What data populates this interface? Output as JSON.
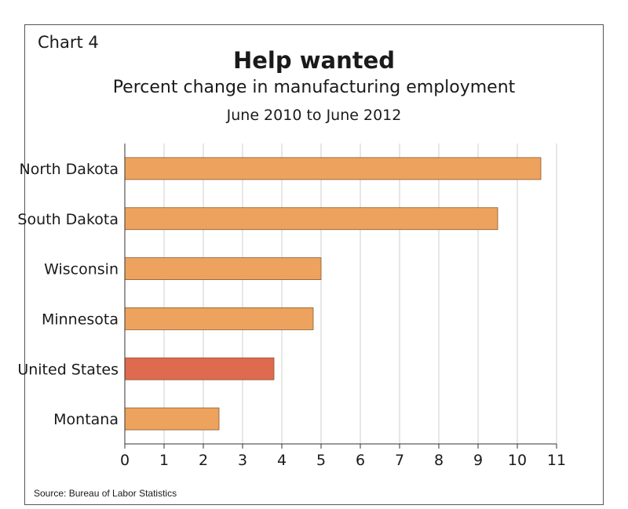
{
  "header": {
    "chart_label": "Chart 4",
    "title": "Help wanted",
    "subtitle": "Percent change in manufacturing employment",
    "period": "June 2010 to June 2012"
  },
  "footer": {
    "source": "Source: Bureau of Labor Statistics"
  },
  "colors": {
    "bar": "#EDA35D",
    "highlight_bar": "#DE6A50",
    "bar_stroke": "#8a5a30",
    "grid": "#cfcfcf",
    "axis": "#333333"
  },
  "chart_data": {
    "type": "bar",
    "orientation": "horizontal",
    "title": "Help wanted",
    "subtitle": "Percent change in manufacturing employment",
    "categories": [
      "North Dakota",
      "South Dakota",
      "Wisconsin",
      "Minnesota",
      "United States",
      "Montana"
    ],
    "values": [
      10.6,
      9.5,
      5.0,
      4.8,
      3.8,
      2.4
    ],
    "highlight": [
      "United States"
    ],
    "xlim": [
      0,
      11
    ],
    "xticks": [
      0,
      1,
      2,
      3,
      4,
      5,
      6,
      7,
      8,
      9,
      10,
      11
    ],
    "xlabel": "",
    "ylabel": "",
    "grid": "vertical"
  }
}
